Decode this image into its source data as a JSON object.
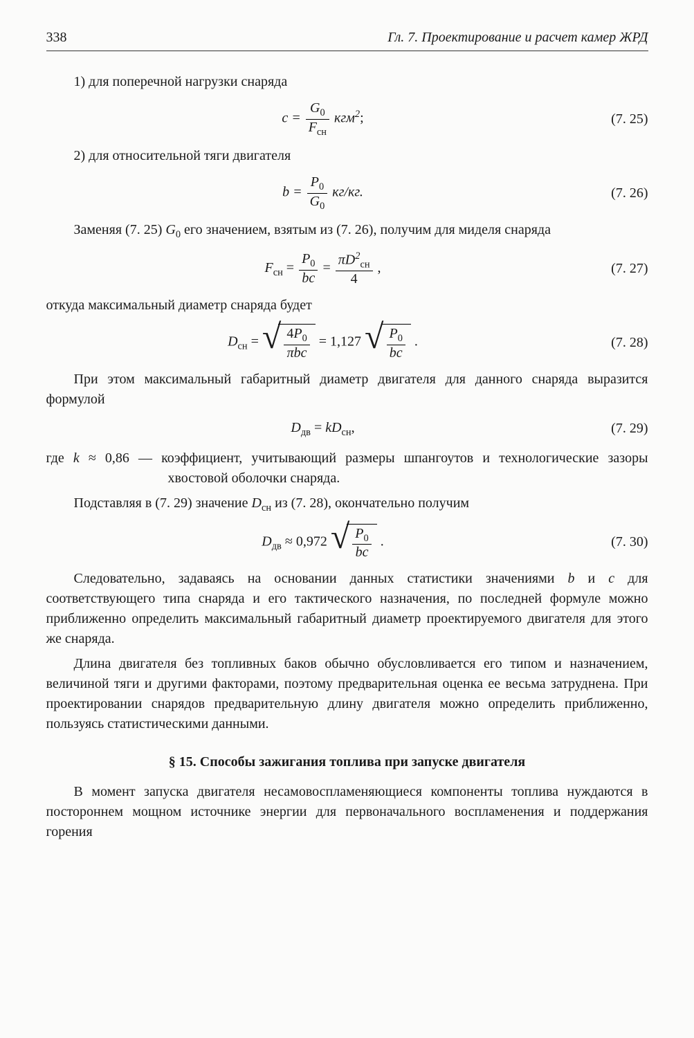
{
  "header": {
    "page": "338",
    "title": "Гл. 7. Проектирование и расчет камер ЖРД"
  },
  "items": {
    "i1": "1) для поперечной нагрузки снаряда",
    "i2": "2) для относительной тяги двигателя"
  },
  "eq": {
    "n25": "(7. 25)",
    "n26": "(7. 26)",
    "n27": "(7. 27)",
    "n28": "(7. 28)",
    "n29": "(7. 29)",
    "n30": "(7. 30)",
    "e25": {
      "lhs": "c =",
      "num": "G",
      "numSub": "0",
      "den": "F",
      "denSub": "сн",
      "unit": " кгм",
      "unitSup": "2",
      "semi": ";"
    },
    "e26": {
      "lhs": "b =",
      "num": "P",
      "numSub": "0",
      "den": "G",
      "denSub": "0",
      "unit": " кг/кг."
    },
    "e27": {
      "lhs": "F",
      "lhsSub": "сн",
      "eq": " = ",
      "num1": "P",
      "num1Sub": "0",
      "den1": "bc",
      "eq2": " = ",
      "num2": "πD",
      "num2Sup": "2",
      "num2Sub": "сн",
      "den2": "4",
      "tail": " ,"
    },
    "e28": {
      "lhs": "D",
      "lhsSub": "сн",
      "eq": " = ",
      "num1": "4P",
      "num1Sub": "0",
      "den1": "πbc",
      "mid": " = 1,127 ",
      "num2": "P",
      "num2Sub": "0",
      "den2": "bc",
      "tail": " ."
    },
    "e29": {
      "lhs": "D",
      "lhsSub": "дв",
      "eq": " = ",
      "rhs": "kD",
      "rhsSub": "сн",
      "tail": ","
    },
    "e30": {
      "lhs": "D",
      "lhsSub": "дв",
      "approx": " ≈ 0,972 ",
      "num": "P",
      "numSub": "0",
      "den": "bc",
      "tail": " ."
    }
  },
  "para": {
    "p1a": "Заменяя (7. 25) ",
    "p1g": "G",
    "p1gSub": "0",
    "p1b": " его значением, взятым из (7. 26), получим для миделя снаряда",
    "p2": "откуда максимальный диаметр снаряда будет",
    "p3": "При этом максимальный габаритный диаметр двигателя для данного снаряда выразится формулой",
    "p4kpre": "где ",
    "p4k": "k",
    "p4approx": " ≈ 0,86 — коэффициент, учитывающий размеры шпангоутов и технологические зазоры хвостовой оболочки сна­ряда.",
    "p5a": "Подставляя в (7. 29) значение ",
    "p5D": "D",
    "p5Dsub": "сн",
    "p5b": " из (7. 28), окончательно по­лучим",
    "p6a": "Следовательно, задаваясь на основании данных статистики зна­чениями ",
    "p6b": "b",
    "p6and": " и ",
    "p6c": "c",
    "p6d": " для соответствующего типа снаряда и его тактиче­ского назначения, по последней формуле можно приближенно опре­делить максимальный габаритный диаметр проектируемого дви­гателя для этого же снаряда.",
    "p7": "Длина двигателя без топливных баков обычно обусловливается его типом и назначением, величиной тяги и другими факторами, поэтому предварительная оценка ее весьма затруднена. При про­ектировании снарядов предварительную длину двигателя можно определить приближенно, пользуясь статистическими данными.",
    "section": "§ 15. Способы зажигания топлива при запуске двигателя",
    "p8": "В момент запуска двигателя несамовоспламеняющиеся компо­ненты топлива нуждаются в постороннем мощном источнике энер­гии для первоначального воспламенения и поддержания горения"
  }
}
